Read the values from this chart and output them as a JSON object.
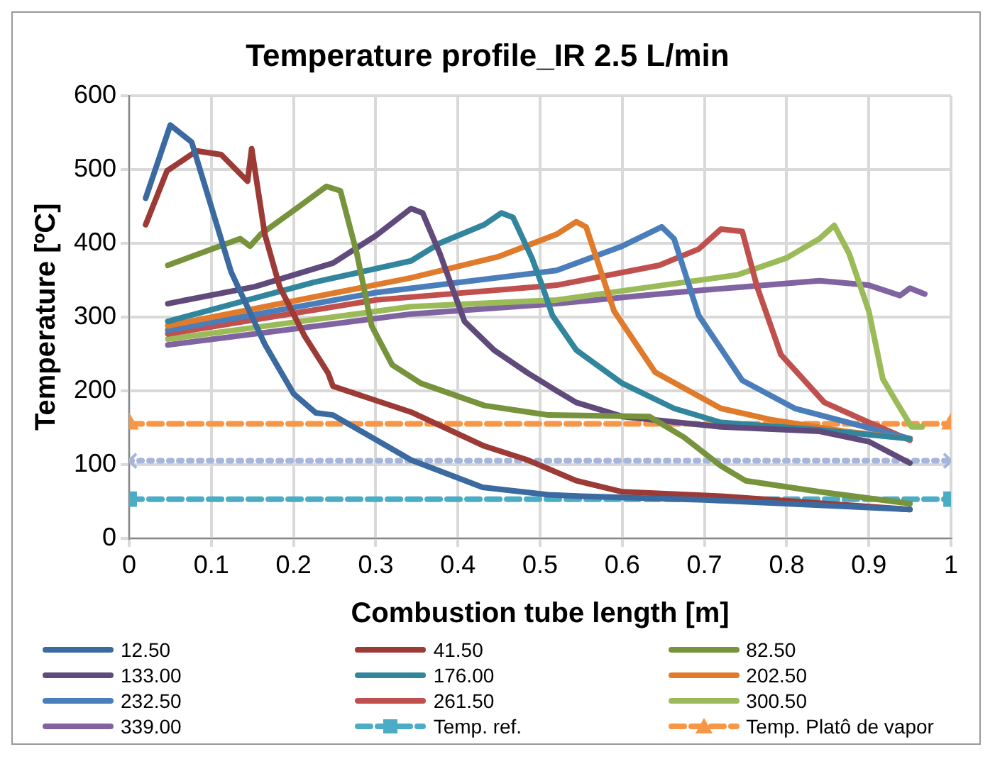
{
  "chart_data": {
    "type": "line",
    "title": "Temperature profile_IR 2.5 L/min",
    "xlabel": "Combustion tube length [m]",
    "ylabel": "Temperature [ºC]",
    "xlim": [
      0,
      1
    ],
    "xticks": [
      0,
      0.1,
      0.2,
      0.3,
      0.4,
      0.5,
      0.6,
      0.7,
      0.8,
      0.9,
      1
    ],
    "ylim": [
      0,
      600
    ],
    "yticks": [
      0,
      100,
      200,
      300,
      400,
      500,
      600
    ],
    "grid": true,
    "legend": "bottom",
    "marker": "none",
    "line_style": "solid",
    "series": [
      {
        "name": "12.50",
        "color": "#3b6aa0",
        "x": [
          0.02,
          0.05,
          0.076,
          0.124,
          0.165,
          0.2,
          0.227,
          0.248,
          0.343,
          0.43,
          0.51,
          0.55,
          0.7,
          0.95
        ],
        "values": [
          461,
          560,
          537,
          361,
          263,
          196,
          170,
          167,
          106,
          69,
          59,
          57,
          52,
          39
        ]
      },
      {
        "name": "41.50",
        "color": "#9c3a36",
        "x": [
          0.02,
          0.046,
          0.082,
          0.112,
          0.144,
          0.149,
          0.165,
          0.183,
          0.213,
          0.242,
          0.248,
          0.343,
          0.432,
          0.485,
          0.544,
          0.6,
          0.72,
          0.95
        ],
        "values": [
          425,
          498,
          525,
          520,
          484,
          528,
          412,
          341,
          275,
          224,
          206,
          171,
          125,
          106,
          78,
          63,
          57,
          39
        ]
      },
      {
        "name": "82.50",
        "color": "#77933c",
        "x": [
          0.047,
          0.135,
          0.147,
          0.16,
          0.206,
          0.24,
          0.257,
          0.277,
          0.295,
          0.32,
          0.355,
          0.432,
          0.51,
          0.633,
          0.675,
          0.72,
          0.75,
          0.84,
          0.95
        ],
        "values": [
          370,
          406,
          396,
          412,
          449,
          477,
          471,
          386,
          288,
          235,
          210,
          180,
          167,
          165,
          137,
          98,
          78,
          63,
          47
        ]
      },
      {
        "name": "133.00",
        "color": "#604a7b",
        "x": [
          0.047,
          0.153,
          0.248,
          0.3,
          0.343,
          0.357,
          0.378,
          0.408,
          0.444,
          0.485,
          0.52,
          0.544,
          0.6,
          0.72,
          0.84,
          0.9,
          0.95
        ],
        "values": [
          318,
          341,
          373,
          410,
          447,
          441,
          386,
          294,
          255,
          224,
          200,
          184,
          165,
          151,
          145,
          131,
          102
        ]
      },
      {
        "name": "176.00",
        "color": "#31859c",
        "x": [
          0.047,
          0.225,
          0.343,
          0.378,
          0.432,
          0.453,
          0.467,
          0.49,
          0.503,
          0.515,
          0.544,
          0.6,
          0.663,
          0.72,
          0.84,
          0.95
        ],
        "values": [
          294,
          347,
          376,
          400,
          425,
          441,
          435,
          380,
          341,
          302,
          255,
          210,
          176,
          157,
          147,
          135
        ]
      },
      {
        "name": "202.50",
        "color": "#e07b2c",
        "x": [
          0.047,
          0.343,
          0.45,
          0.52,
          0.544,
          0.556,
          0.59,
          0.64,
          0.72,
          0.78,
          0.87,
          0.95
        ],
        "values": [
          288,
          353,
          382,
          412,
          429,
          422,
          308,
          225,
          176,
          161,
          145,
          135
        ]
      },
      {
        "name": "232.50",
        "color": "#4a7ebb",
        "x": [
          0.047,
          0.3,
          0.52,
          0.544,
          0.6,
          0.648,
          0.663,
          0.693,
          0.746,
          0.81,
          0.95
        ],
        "values": [
          282,
          333,
          363,
          373,
          396,
          422,
          406,
          302,
          214,
          176,
          135
        ]
      },
      {
        "name": "261.50",
        "color": "#c0504d",
        "x": [
          0.047,
          0.3,
          0.52,
          0.645,
          0.693,
          0.72,
          0.746,
          0.764,
          0.793,
          0.846,
          0.9,
          0.95
        ],
        "values": [
          277,
          323,
          343,
          370,
          392,
          419,
          416,
          341,
          249,
          184,
          157,
          133
        ]
      },
      {
        "name": "300.50",
        "color": "#9bbb59",
        "x": [
          0.047,
          0.343,
          0.52,
          0.74,
          0.8,
          0.84,
          0.858,
          0.876,
          0.9,
          0.917,
          0.934,
          0.952,
          0.965
        ],
        "values": [
          270,
          314,
          323,
          357,
          380,
          406,
          424,
          386,
          308,
          216,
          184,
          151,
          151
        ]
      },
      {
        "name": "339.00",
        "color": "#8064a2",
        "x": [
          0.047,
          0.343,
          0.52,
          0.663,
          0.75,
          0.84,
          0.9,
          0.938,
          0.95,
          0.968
        ],
        "values": [
          262,
          304,
          318,
          333,
          341,
          349,
          343,
          329,
          339,
          331
        ]
      },
      {
        "name": "Temp. ref.",
        "color": "#4bacc6",
        "x": [
          0,
          1
        ],
        "values": [
          53,
          53
        ],
        "marker": "square",
        "line_style": "dashed"
      },
      {
        "name": "Temp. Platô de vapor",
        "color": "#f79646",
        "x": [
          0,
          1
        ],
        "values": [
          155,
          155
        ],
        "marker": "triangle",
        "line_style": "dashed"
      },
      {
        "color": "#a5b5db",
        "x": [
          0,
          1
        ],
        "values": [
          105,
          105
        ],
        "marker": "cross",
        "line_style": "dotted"
      }
    ]
  }
}
